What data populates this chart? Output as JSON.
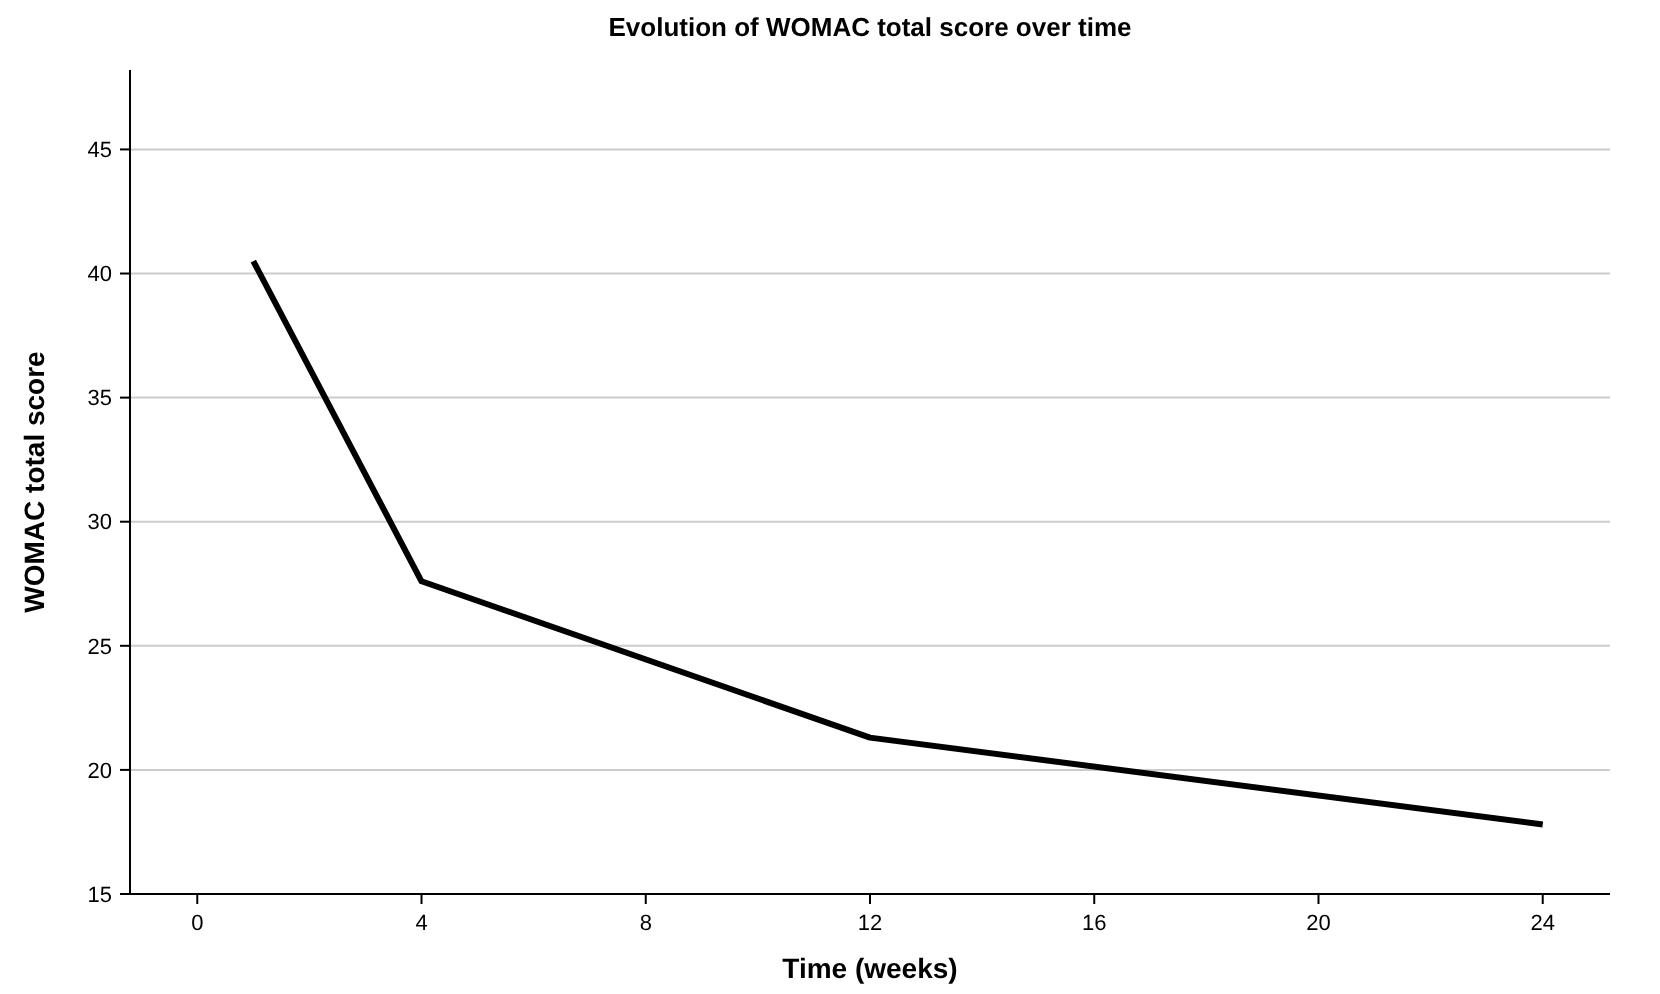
{
  "chart_data": {
    "type": "line",
    "title": "Evolution of WOMAC total score over time",
    "xlabel": "Time (weeks)",
    "ylabel": "WOMAC total score",
    "x": [
      1,
      4,
      12,
      24
    ],
    "series": [
      {
        "color": "#000000",
        "values": [
          40.5,
          27.6,
          21.3,
          17.8
        ]
      }
    ],
    "xlim": [
      -1.2,
      25.2
    ],
    "xticks": [
      0,
      4,
      8,
      12,
      16,
      20,
      24
    ],
    "ylim": [
      15,
      48.2
    ],
    "yticks": [
      15,
      20,
      25,
      30,
      35,
      40,
      45
    ],
    "grid": "y",
    "marker": "none",
    "line_style": "solid"
  }
}
